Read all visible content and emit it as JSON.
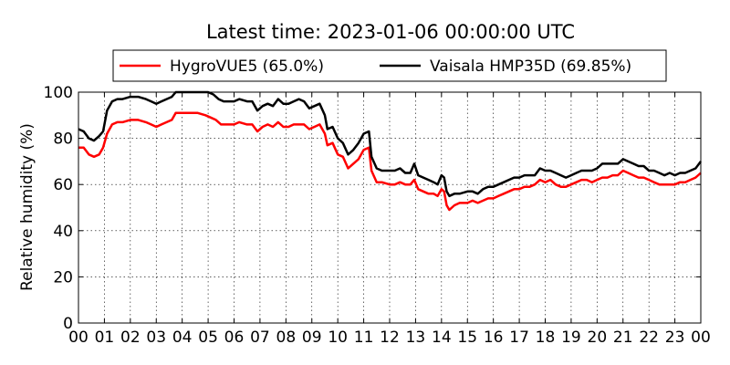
{
  "chart_data": {
    "type": "line",
    "title": "Latest time: 2023-01-06 00:00:00 UTC",
    "xlabel": "",
    "ylabel": "Relative humidity (%)",
    "xlim": [
      0,
      24
    ],
    "ylim": [
      0,
      100
    ],
    "grid": true,
    "legend_position": "top",
    "x_tick_labels": [
      "00",
      "01",
      "02",
      "03",
      "04",
      "05",
      "06",
      "07",
      "08",
      "09",
      "10",
      "11",
      "12",
      "13",
      "14",
      "15",
      "16",
      "17",
      "18",
      "19",
      "20",
      "21",
      "22",
      "23",
      "00"
    ],
    "y_ticks": [
      0,
      20,
      40,
      60,
      80,
      100
    ],
    "series": [
      {
        "name": "HygroVUE5 (65.0%)",
        "color": "#ff0000",
        "points": [
          [
            0,
            76
          ],
          [
            0.2,
            76
          ],
          [
            0.4,
            73
          ],
          [
            0.6,
            72
          ],
          [
            0.8,
            73
          ],
          [
            0.95,
            76
          ],
          [
            1.1,
            82
          ],
          [
            1.3,
            86
          ],
          [
            1.5,
            87
          ],
          [
            1.7,
            87
          ],
          [
            2,
            88
          ],
          [
            2.3,
            88
          ],
          [
            2.6,
            87
          ],
          [
            2.8,
            86
          ],
          [
            3,
            85
          ],
          [
            3.2,
            86
          ],
          [
            3.4,
            87
          ],
          [
            3.6,
            88
          ],
          [
            3.75,
            91
          ],
          [
            4,
            91
          ],
          [
            4.3,
            91
          ],
          [
            4.6,
            91
          ],
          [
            4.9,
            90
          ],
          [
            5.1,
            89
          ],
          [
            5.3,
            88
          ],
          [
            5.5,
            86
          ],
          [
            5.7,
            86
          ],
          [
            6,
            86
          ],
          [
            6.2,
            87
          ],
          [
            6.5,
            86
          ],
          [
            6.7,
            86
          ],
          [
            6.9,
            83
          ],
          [
            7.1,
            85
          ],
          [
            7.3,
            86
          ],
          [
            7.5,
            85
          ],
          [
            7.7,
            87
          ],
          [
            7.9,
            85
          ],
          [
            8.1,
            85
          ],
          [
            8.3,
            86
          ],
          [
            8.5,
            86
          ],
          [
            8.7,
            86
          ],
          [
            8.9,
            84
          ],
          [
            9.1,
            85
          ],
          [
            9.3,
            86
          ],
          [
            9.5,
            82
          ],
          [
            9.6,
            77
          ],
          [
            9.8,
            78
          ],
          [
            10,
            73
          ],
          [
            10.2,
            72
          ],
          [
            10.4,
            67
          ],
          [
            10.6,
            69
          ],
          [
            10.8,
            71
          ],
          [
            11,
            75
          ],
          [
            11.2,
            76
          ],
          [
            11.3,
            66
          ],
          [
            11.5,
            61
          ],
          [
            11.7,
            61
          ],
          [
            12,
            60
          ],
          [
            12.2,
            60
          ],
          [
            12.4,
            61
          ],
          [
            12.6,
            60
          ],
          [
            12.8,
            60
          ],
          [
            12.95,
            62
          ],
          [
            13.1,
            58
          ],
          [
            13.3,
            57
          ],
          [
            13.5,
            56
          ],
          [
            13.7,
            56
          ],
          [
            13.85,
            55
          ],
          [
            14,
            58
          ],
          [
            14.1,
            57
          ],
          [
            14.2,
            51
          ],
          [
            14.3,
            49
          ],
          [
            14.5,
            51
          ],
          [
            14.7,
            52
          ],
          [
            15,
            52
          ],
          [
            15.2,
            53
          ],
          [
            15.4,
            52
          ],
          [
            15.6,
            53
          ],
          [
            15.8,
            54
          ],
          [
            16,
            54
          ],
          [
            16.2,
            55
          ],
          [
            16.4,
            56
          ],
          [
            16.6,
            57
          ],
          [
            16.8,
            58
          ],
          [
            17,
            58
          ],
          [
            17.2,
            59
          ],
          [
            17.4,
            59
          ],
          [
            17.6,
            60
          ],
          [
            17.8,
            62
          ],
          [
            18,
            61
          ],
          [
            18.2,
            62
          ],
          [
            18.4,
            60
          ],
          [
            18.6,
            59
          ],
          [
            18.8,
            59
          ],
          [
            19,
            60
          ],
          [
            19.2,
            61
          ],
          [
            19.4,
            62
          ],
          [
            19.6,
            62
          ],
          [
            19.8,
            61
          ],
          [
            20,
            62
          ],
          [
            20.2,
            63
          ],
          [
            20.4,
            63
          ],
          [
            20.6,
            64
          ],
          [
            20.8,
            64
          ],
          [
            21,
            66
          ],
          [
            21.2,
            65
          ],
          [
            21.4,
            64
          ],
          [
            21.6,
            63
          ],
          [
            21.8,
            63
          ],
          [
            22,
            62
          ],
          [
            22.2,
            61
          ],
          [
            22.4,
            60
          ],
          [
            22.6,
            60
          ],
          [
            22.8,
            60
          ],
          [
            23,
            60
          ],
          [
            23.2,
            61
          ],
          [
            23.4,
            61
          ],
          [
            23.6,
            62
          ],
          [
            23.8,
            63
          ],
          [
            24,
            65
          ]
        ]
      },
      {
        "name": "Vaisala HMP35D (69.85%)",
        "color": "#000000",
        "points": [
          [
            0,
            84
          ],
          [
            0.2,
            83
          ],
          [
            0.4,
            80
          ],
          [
            0.6,
            79
          ],
          [
            0.8,
            81
          ],
          [
            0.95,
            83
          ],
          [
            1.1,
            92
          ],
          [
            1.3,
            96
          ],
          [
            1.5,
            97
          ],
          [
            1.7,
            97
          ],
          [
            2,
            98
          ],
          [
            2.3,
            98
          ],
          [
            2.6,
            97
          ],
          [
            2.8,
            96
          ],
          [
            3,
            95
          ],
          [
            3.2,
            96
          ],
          [
            3.4,
            97
          ],
          [
            3.6,
            98
          ],
          [
            3.75,
            100
          ],
          [
            4,
            100
          ],
          [
            4.5,
            100
          ],
          [
            5,
            100
          ],
          [
            5.2,
            99
          ],
          [
            5.4,
            97
          ],
          [
            5.6,
            96
          ],
          [
            5.8,
            96
          ],
          [
            6,
            96
          ],
          [
            6.2,
            97
          ],
          [
            6.5,
            96
          ],
          [
            6.7,
            96
          ],
          [
            6.9,
            92
          ],
          [
            7.1,
            94
          ],
          [
            7.3,
            95
          ],
          [
            7.5,
            94
          ],
          [
            7.7,
            97
          ],
          [
            7.9,
            95
          ],
          [
            8.1,
            95
          ],
          [
            8.3,
            96
          ],
          [
            8.5,
            97
          ],
          [
            8.7,
            96
          ],
          [
            8.9,
            93
          ],
          [
            9.1,
            94
          ],
          [
            9.3,
            95
          ],
          [
            9.5,
            90
          ],
          [
            9.6,
            84
          ],
          [
            9.8,
            85
          ],
          [
            10,
            80
          ],
          [
            10.2,
            78
          ],
          [
            10.4,
            73
          ],
          [
            10.6,
            75
          ],
          [
            10.8,
            78
          ],
          [
            11,
            82
          ],
          [
            11.2,
            83
          ],
          [
            11.3,
            72
          ],
          [
            11.5,
            67
          ],
          [
            11.7,
            66
          ],
          [
            12,
            66
          ],
          [
            12.2,
            66
          ],
          [
            12.4,
            67
          ],
          [
            12.6,
            65
          ],
          [
            12.8,
            65
          ],
          [
            12.95,
            69
          ],
          [
            13.1,
            64
          ],
          [
            13.3,
            63
          ],
          [
            13.5,
            62
          ],
          [
            13.7,
            61
          ],
          [
            13.85,
            60
          ],
          [
            14,
            64
          ],
          [
            14.1,
            63
          ],
          [
            14.2,
            57
          ],
          [
            14.3,
            55
          ],
          [
            14.5,
            56
          ],
          [
            14.7,
            56
          ],
          [
            15,
            57
          ],
          [
            15.2,
            57
          ],
          [
            15.4,
            56
          ],
          [
            15.6,
            58
          ],
          [
            15.8,
            59
          ],
          [
            16,
            59
          ],
          [
            16.2,
            60
          ],
          [
            16.4,
            61
          ],
          [
            16.6,
            62
          ],
          [
            16.8,
            63
          ],
          [
            17,
            63
          ],
          [
            17.2,
            64
          ],
          [
            17.4,
            64
          ],
          [
            17.6,
            64
          ],
          [
            17.8,
            67
          ],
          [
            18,
            66
          ],
          [
            18.2,
            66
          ],
          [
            18.4,
            65
          ],
          [
            18.6,
            64
          ],
          [
            18.8,
            63
          ],
          [
            19,
            64
          ],
          [
            19.2,
            65
          ],
          [
            19.4,
            66
          ],
          [
            19.6,
            66
          ],
          [
            19.8,
            66
          ],
          [
            20,
            67
          ],
          [
            20.2,
            69
          ],
          [
            20.4,
            69
          ],
          [
            20.6,
            69
          ],
          [
            20.8,
            69
          ],
          [
            21,
            71
          ],
          [
            21.2,
            70
          ],
          [
            21.4,
            69
          ],
          [
            21.6,
            68
          ],
          [
            21.8,
            68
          ],
          [
            22,
            66
          ],
          [
            22.2,
            66
          ],
          [
            22.4,
            65
          ],
          [
            22.6,
            64
          ],
          [
            22.8,
            65
          ],
          [
            23,
            64
          ],
          [
            23.2,
            65
          ],
          [
            23.4,
            65
          ],
          [
            23.6,
            66
          ],
          [
            23.8,
            67
          ],
          [
            24,
            70
          ]
        ]
      }
    ]
  }
}
